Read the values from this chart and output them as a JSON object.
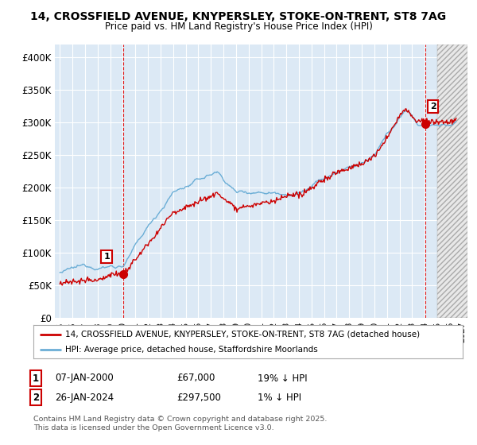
{
  "title1": "14, CROSSFIELD AVENUE, KNYPERSLEY, STOKE-ON-TRENT, ST8 7AG",
  "title2": "Price paid vs. HM Land Registry's House Price Index (HPI)",
  "ylim": [
    0,
    420000
  ],
  "yticks": [
    0,
    50000,
    100000,
    150000,
    200000,
    250000,
    300000,
    350000,
    400000
  ],
  "ytick_labels": [
    "£0",
    "£50K",
    "£100K",
    "£150K",
    "£200K",
    "£250K",
    "£300K",
    "£350K",
    "£400K"
  ],
  "hpi_color": "#6baed6",
  "price_color": "#cc0000",
  "bg_color": "#ffffff",
  "chart_bg_color": "#dce9f5",
  "grid_color": "#ffffff",
  "hatch_color": "#c0c0c0",
  "vline_color": "#dd0000",
  "legend_label_price": "14, CROSSFIELD AVENUE, KNYPERSLEY, STOKE-ON-TRENT, ST8 7AG (detached house)",
  "legend_label_hpi": "HPI: Average price, detached house, Staffordshire Moorlands",
  "annotation1_date": "07-JAN-2000",
  "annotation1_price": "£67,000",
  "annotation1_pct": "19% ↓ HPI",
  "annotation2_date": "26-JAN-2024",
  "annotation2_price": "£297,500",
  "annotation2_pct": "1% ↓ HPI",
  "footer": "Contains HM Land Registry data © Crown copyright and database right 2025.\nThis data is licensed under the Open Government Licence v3.0.",
  "sale1_year": 2000.05,
  "sale1_price": 67000,
  "sale2_year": 2024.07,
  "sale2_price": 297500,
  "xlim_left": 1994.6,
  "xlim_right": 2027.4,
  "hatch_start": 2025.0,
  "xticks": [
    1995,
    1996,
    1997,
    1998,
    1999,
    2000,
    2001,
    2002,
    2003,
    2004,
    2005,
    2006,
    2007,
    2008,
    2009,
    2010,
    2011,
    2012,
    2013,
    2014,
    2015,
    2016,
    2017,
    2018,
    2019,
    2020,
    2021,
    2022,
    2023,
    2024,
    2025,
    2026,
    2027
  ]
}
